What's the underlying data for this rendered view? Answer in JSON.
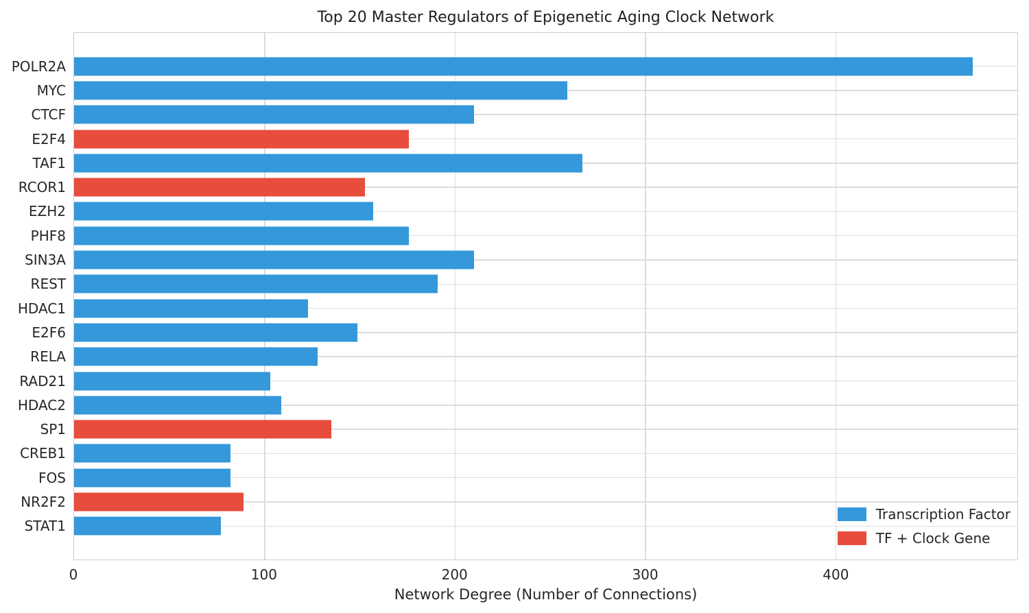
{
  "chart_data": {
    "type": "bar",
    "orientation": "horizontal",
    "title": "Top 20 Master Regulators of Epigenetic Aging Clock Network",
    "xlabel": "Network Degree (Number of Connections)",
    "ylabel": "",
    "categories": [
      "POLR2A",
      "MYC",
      "CTCF",
      "E2F4",
      "TAF1",
      "RCOR1",
      "EZH2",
      "PHF8",
      "SIN3A",
      "REST",
      "HDAC1",
      "E2F6",
      "RELA",
      "RAD21",
      "HDAC2",
      "SP1",
      "CREB1",
      "FOS",
      "NR2F2",
      "STAT1"
    ],
    "values": [
      472,
      259,
      210,
      176,
      267,
      153,
      157,
      176,
      210,
      191,
      123,
      149,
      128,
      103,
      109,
      135,
      82,
      82,
      89,
      77
    ],
    "bar_types": [
      "tf",
      "tf",
      "tf",
      "clock",
      "tf",
      "clock",
      "tf",
      "tf",
      "tf",
      "tf",
      "tf",
      "tf",
      "tf",
      "tf",
      "tf",
      "clock",
      "tf",
      "tf",
      "clock",
      "tf"
    ],
    "colors": {
      "tf": "#3498db",
      "clock": "#e74c3c"
    },
    "xlim": [
      0,
      495.6
    ],
    "xticks": [
      0,
      100,
      200,
      300,
      400
    ],
    "grid": true,
    "grid_color": "#dcdcdc",
    "spine_color": "#cccccc",
    "legend": {
      "position": "lower right",
      "entries": [
        {
          "label": "Transcription Factor",
          "color": "#3498db",
          "type": "tf"
        },
        {
          "label": "TF + Clock Gene",
          "color": "#e74c3c",
          "type": "clock"
        }
      ]
    }
  }
}
